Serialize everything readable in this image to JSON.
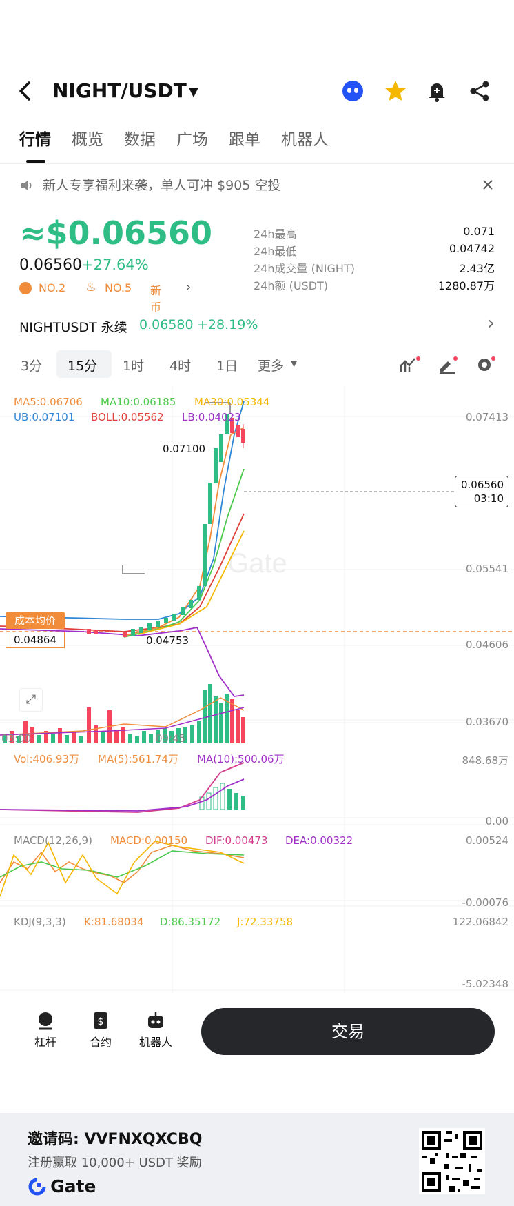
{
  "header": {
    "pair": "NIGHT/USDT"
  },
  "tabs": [
    "行情",
    "概览",
    "数据",
    "广场",
    "跟单",
    "机器人"
  ],
  "notice": {
    "text": "新人专享福利来袭，单人可冲 $905 空投"
  },
  "price": {
    "main": "≈$0.06560",
    "last": "0.06560",
    "change": "+27.64%",
    "badge_rank": "NO.2",
    "badge_hot": "NO.5",
    "badge_new": "新币"
  },
  "stats": [
    {
      "label": "24h最高",
      "value": "0.071"
    },
    {
      "label": "24h最低",
      "value": "0.04742"
    },
    {
      "label": "24h成交量 (NIGHT)",
      "value": "2.43亿"
    },
    {
      "label": "24h额 (USDT)",
      "value": "1280.87万"
    }
  ],
  "perp": {
    "name": "NIGHTUSDT 永续",
    "price": "0.06580",
    "change": "+28.19%"
  },
  "timeframes": [
    "3分",
    "15分",
    "1时",
    "4时",
    "1日",
    "更多"
  ],
  "main_chart": {
    "ma5": "MA5:0.06706",
    "ma10": "MA10:0.06185",
    "ma30": "MA30:0.05344",
    "ub": "UB:0.07101",
    "boll": "BOLL:0.05562",
    "lb": "LB:0.04023",
    "y_ticks": [
      "0.07413",
      "0.05541",
      "0.04606",
      "0.03670"
    ],
    "high_mark": "0.07100",
    "low_mark": "0.04753",
    "current_price": "0.06560",
    "countdown": "03:10",
    "cost_label": "成本均价",
    "cost_value": "0.04864",
    "x_ticks": [
      "03:00",
      "09:45"
    ],
    "watermark": "Gate"
  },
  "vol_panel": {
    "vol": "Vol:406.93万",
    "ma5": "MA(5):561.74万",
    "ma10": "MA(10):500.06万",
    "y_top": "848.68万",
    "y_bottom": "0.00"
  },
  "macd_panel": {
    "title": "MACD(12,26,9)",
    "macd": "MACD:0.00150",
    "dif": "DIF:0.00473",
    "dea": "DEA:0.00322",
    "y_top": "0.00524",
    "y_bottom": "-0.00076"
  },
  "kdj_panel": {
    "title": "KDJ(9,3,3)",
    "k": "K:81.68034",
    "d": "D:86.35172",
    "j": "J:72.33758",
    "y_top": "122.06842",
    "y_bottom": "-5.02348"
  },
  "bottom_bar": {
    "leverage": "杠杆",
    "contract": "合约",
    "bot": "机器人",
    "trade": "交易"
  },
  "footer": {
    "invite": "邀请码: VVFNXQXCBQ",
    "promo": "注册赢取 10,000+ USDT 奖励",
    "brand": "Gate"
  },
  "colors": {
    "green": "#2ebd85",
    "red": "#f6465d",
    "orange": "#f08c3a"
  }
}
